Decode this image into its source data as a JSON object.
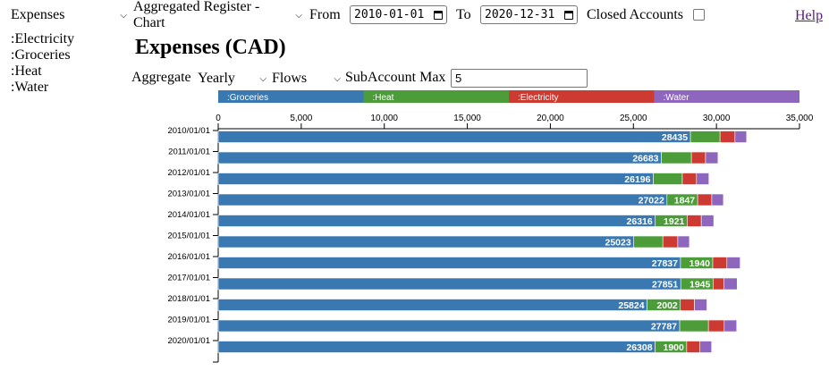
{
  "toolbar": {
    "account_select": "Expenses",
    "view_select": "Aggregated Register - Chart",
    "from_label": "From",
    "from_date": "2010-01-01",
    "to_label": "To",
    "to_date": "2020-12-31",
    "closed_label": "Closed Accounts",
    "help_link": "Help"
  },
  "sidebar": {
    "accounts": [
      ":Electricity",
      ":Groceries",
      ":Heat",
      ":Water"
    ]
  },
  "main": {
    "title": "Expenses (CAD)",
    "aggregate_label": "Aggregate",
    "aggregate_select": "Yearly",
    "flows_select": "Flows",
    "subaccount_label": "SubAccount Max",
    "subaccount_value": "5"
  },
  "colors": {
    "groceries": "#3a78b1",
    "heat": "#4c9d3a",
    "electricity": "#cc3a32",
    "water": "#8f66bd"
  },
  "chart_data": {
    "type": "bar",
    "orientation": "horizontal",
    "stacked": true,
    "categories": [
      "2010/01/01",
      "2011/01/01",
      "2012/01/01",
      "2013/01/01",
      "2014/01/01",
      "2015/01/01",
      "2016/01/01",
      "2017/01/01",
      "2018/01/01",
      "2019/01/01",
      "2020/01/01"
    ],
    "legend": [
      ":Groceries",
      ":Heat",
      ":Electricity",
      ":Water"
    ],
    "legend_position": "top",
    "xlim": [
      0,
      35000
    ],
    "xticks": [
      "0",
      "5,000",
      "10,000",
      "15,000",
      "20,000",
      "25,000",
      "30,000",
      "35,000"
    ],
    "series": [
      {
        "name": ":Groceries",
        "values": [
          28435,
          26683,
          26196,
          27022,
          26316,
          25023,
          27837,
          27851,
          25824,
          27787,
          26308
        ],
        "labels": [
          "28435",
          "26683",
          "26196",
          "27022",
          "26316",
          "25023",
          "27837",
          "27851",
          "25824",
          "27787",
          "26308"
        ]
      },
      {
        "name": ":Heat",
        "values": [
          1780,
          1810,
          1750,
          1847,
          1921,
          1750,
          1940,
          1945,
          2002,
          1730,
          1900
        ],
        "labels": [
          "",
          "",
          "",
          "1847",
          "1921",
          "",
          "1940",
          "1945",
          "2002",
          "",
          "1900"
        ]
      },
      {
        "name": ":Electricity",
        "values": [
          900,
          850,
          850,
          850,
          850,
          900,
          850,
          650,
          850,
          950,
          800
        ],
        "labels": [
          "",
          "",
          "",
          "",
          "",
          "",
          "",
          "",
          "",
          "",
          ""
        ]
      },
      {
        "name": ":Water",
        "values": [
          700,
          750,
          750,
          700,
          750,
          700,
          800,
          800,
          750,
          750,
          700
        ],
        "labels": [
          "",
          "",
          "",
          "",
          "",
          "",
          "",
          "",
          "",
          "",
          ""
        ]
      }
    ]
  }
}
